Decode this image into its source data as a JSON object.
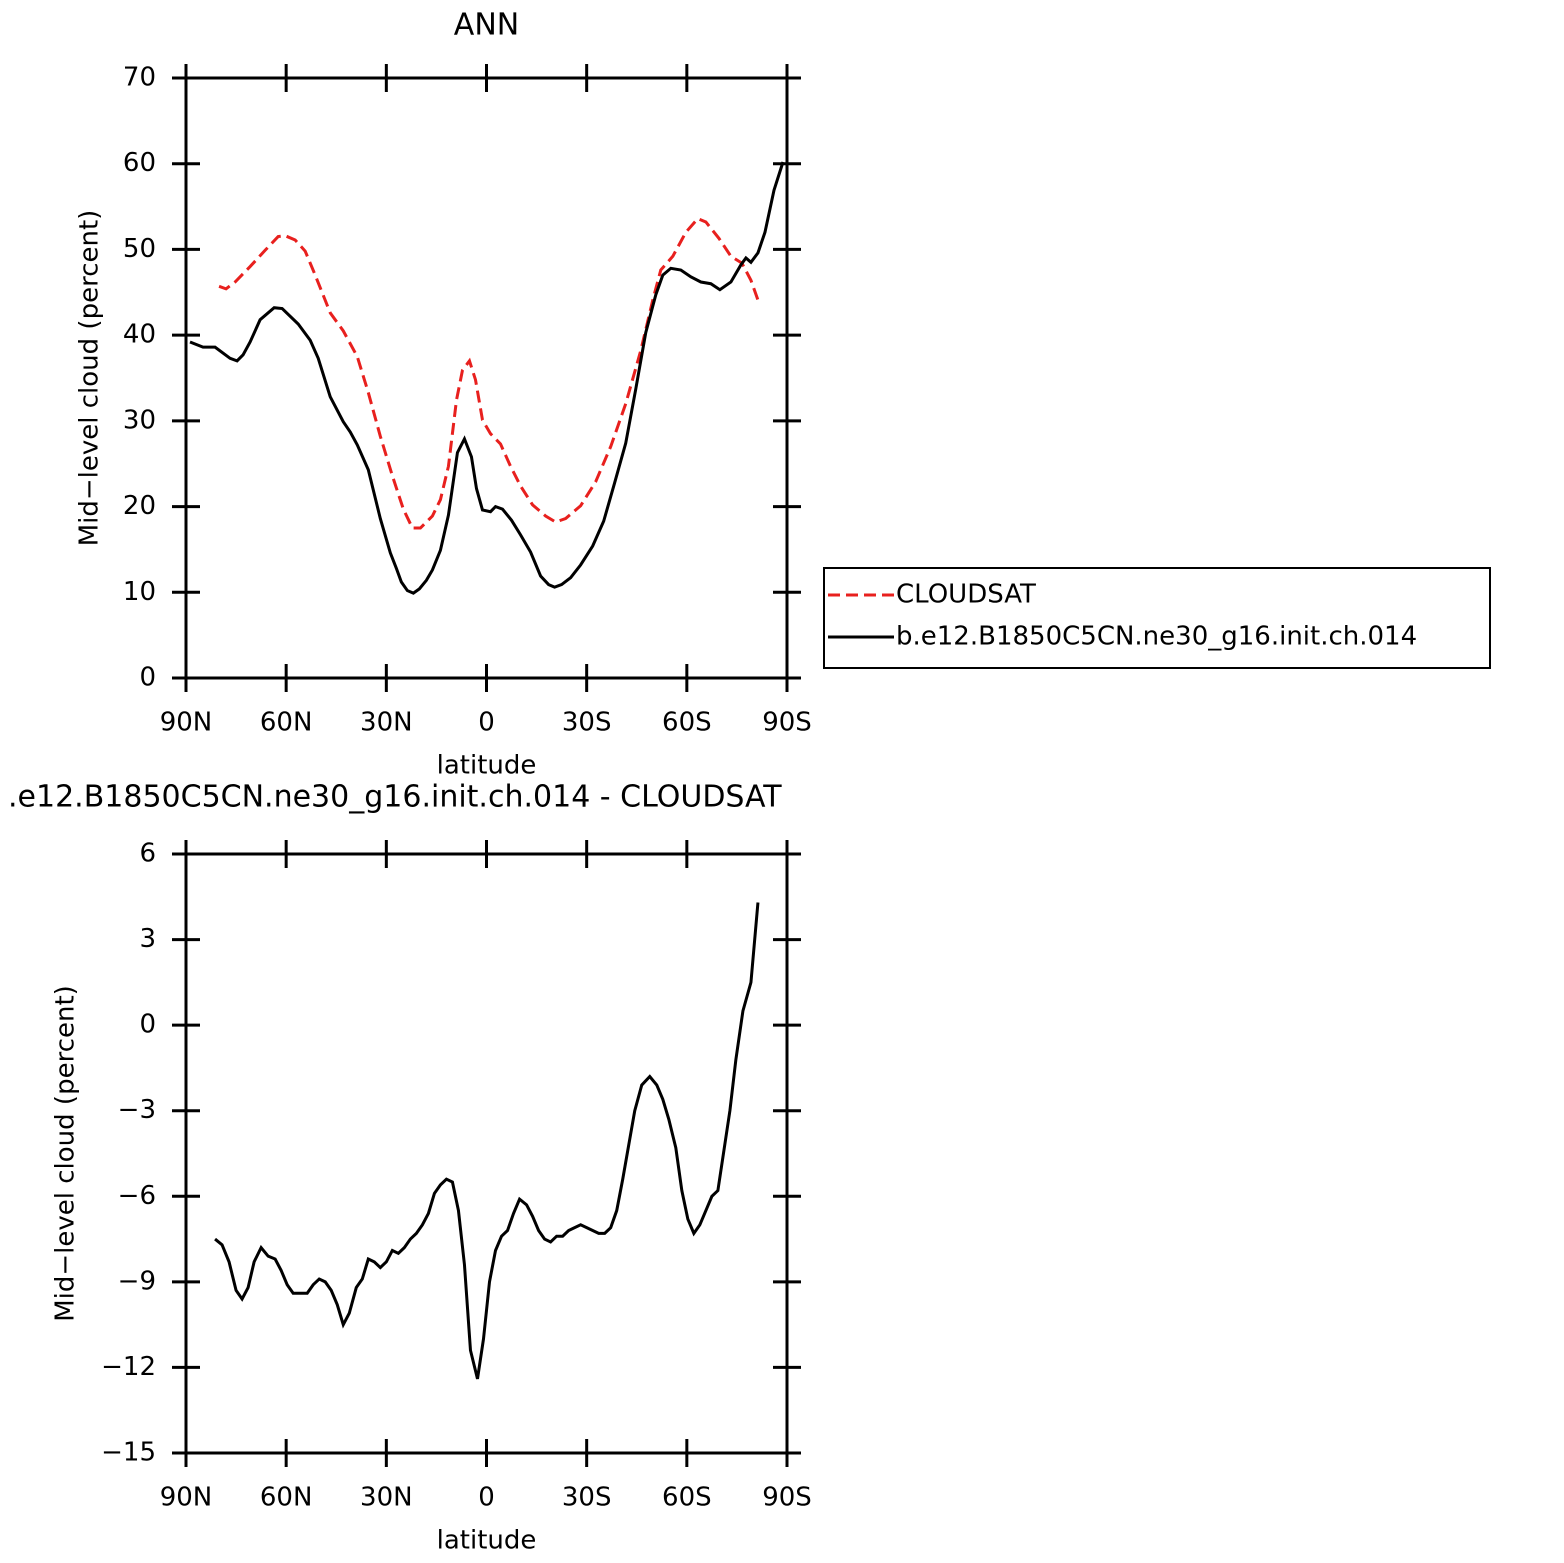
{
  "chart_data": [
    {
      "type": "line",
      "title": "ANN",
      "xlabel": "latitude",
      "ylabel": "Mid−level cloud (percent)",
      "xlim": [
        90,
        -90
      ],
      "xticks": [
        {
          "value": 90,
          "label": "90N"
        },
        {
          "value": 60,
          "label": "60N"
        },
        {
          "value": 30,
          "label": "30N"
        },
        0,
        {
          "value": -30,
          "label": "30S"
        },
        {
          "value": -60,
          "label": "60S"
        },
        {
          "value": -90,
          "label": "90S"
        }
      ],
      "ylim": [
        0,
        70
      ],
      "yticks": [
        0,
        10,
        20,
        30,
        40,
        50,
        60,
        70
      ],
      "legend": "right",
      "series": [
        {
          "name": "CLOUDSAT",
          "color": "#e8201e",
          "linestyle": "dashed",
          "x": [
            80.1,
            78,
            75.3,
            70.8,
            66.3,
            62.4,
            60.3,
            57.3,
            54.3,
            51.3,
            46.8,
            42.9,
            38.7,
            35.4,
            31.8,
            28.2,
            24.9,
            22.2,
            19.8,
            16.2,
            13.8,
            11.4,
            9,
            7.2,
            5.1,
            3.3,
            1.2,
            -1.2,
            -4.2,
            -7.2,
            -10.2,
            -13.8,
            -17.7,
            -20.7,
            -23.7,
            -28.2,
            -32.7,
            -37.2,
            -41.7,
            -46.2,
            -49.8,
            -52.2,
            -55.8,
            -59.7,
            -63.3,
            -65.7,
            -69.6,
            -73.2,
            -76.5,
            -79.2,
            -81.3
          ],
          "values": [
            45.7,
            45.4,
            46.2,
            48.0,
            49.9,
            51.5,
            51.6,
            51.1,
            49.8,
            47.0,
            42.6,
            40.5,
            37.5,
            33.3,
            28.2,
            23.6,
            19.7,
            17.5,
            17.5,
            18.9,
            20.8,
            24.7,
            32.4,
            35.9,
            37.0,
            34.8,
            30.1,
            28.5,
            27.3,
            24.7,
            22.4,
            20.2,
            18.9,
            18.2,
            18.6,
            20.1,
            22.9,
            27.0,
            32.0,
            38.2,
            44.1,
            47.6,
            49.2,
            52.0,
            53.6,
            53.2,
            51.3,
            49.2,
            48.4,
            46.4,
            44.1
          ]
        },
        {
          "name": "b.e12.B1850C5CN.ne30_g16.init.ch.014",
          "color": "#000000",
          "linestyle": "solid",
          "x": [
            88.8,
            84.9,
            81.3,
            76.8,
            74.7,
            72.9,
            70.8,
            67.8,
            63.6,
            61.2,
            56.4,
            52.8,
            50.4,
            46.8,
            42.9,
            40.8,
            38.7,
            35.4,
            31.8,
            28.8,
            27,
            25.5,
            23.7,
            21.9,
            20.1,
            18,
            16.2,
            13.8,
            11.4,
            8.7,
            6.6,
            4.5,
            3,
            1.2,
            -1.2,
            -2.7,
            -4.8,
            -7.5,
            -10.2,
            -13.2,
            -16.2,
            -18.6,
            -20.4,
            -22.5,
            -25.2,
            -28.2,
            -31.8,
            -35.1,
            -38.4,
            -41.7,
            -44.7,
            -47.7,
            -50.7,
            -52.8,
            -55.2,
            -58.2,
            -61.2,
            -64.2,
            -67.2,
            -69.9,
            -73.2,
            -76.2,
            -77.7,
            -79.2,
            -81.3,
            -83.4,
            -86.1,
            -88.8
          ],
          "values": [
            39.2,
            38.6,
            38.6,
            37.3,
            37.0,
            37.7,
            39.2,
            41.8,
            43.2,
            43.1,
            41.3,
            39.4,
            37.3,
            32.8,
            29.9,
            28.7,
            27.2,
            24.3,
            18.6,
            14.6,
            12.8,
            11.2,
            10.2,
            9.9,
            10.4,
            11.4,
            12.6,
            14.9,
            19.0,
            26.3,
            27.9,
            25.8,
            22.1,
            19.6,
            19.4,
            20.0,
            19.7,
            18.4,
            16.7,
            14.7,
            11.9,
            10.9,
            10.6,
            10.9,
            11.7,
            13.2,
            15.4,
            18.3,
            22.8,
            27.4,
            33.7,
            40.3,
            44.7,
            47.0,
            47.8,
            47.6,
            46.8,
            46.2,
            46.0,
            45.3,
            46.2,
            48.2,
            49.0,
            48.5,
            49.6,
            52.0,
            56.9,
            60.2
          ]
        }
      ]
    },
    {
      "type": "line",
      "title": ".e12.B1850C5CN.ne30_g16.init.ch.014 - CLOUDSAT",
      "xlabel": "latitude",
      "ylabel": "Mid−level cloud (percent)",
      "xlim": [
        90,
        -90
      ],
      "xticks": [
        {
          "value": 90,
          "label": "90N"
        },
        {
          "value": 60,
          "label": "60N"
        },
        {
          "value": 30,
          "label": "30N"
        },
        0,
        {
          "value": -30,
          "label": "30S"
        },
        {
          "value": -60,
          "label": "60S"
        },
        {
          "value": -90,
          "label": "90S"
        }
      ],
      "ylim": [
        -15,
        6
      ],
      "yticks": [
        {
          "value": -15,
          "label": "−15"
        },
        {
          "value": -12,
          "label": "−12"
        },
        {
          "value": -9,
          "label": "−9"
        },
        {
          "value": -6,
          "label": "−6"
        },
        {
          "value": -3,
          "label": "−3"
        },
        0,
        3,
        6
      ],
      "series": [
        {
          "color": "#000000",
          "linestyle": "solid",
          "x": [
            81.3,
            79.2,
            77.1,
            75,
            73.2,
            71.4,
            69.6,
            67.5,
            65.4,
            63.3,
            61.5,
            59.7,
            57.9,
            55.8,
            53.7,
            51.9,
            50.1,
            48.3,
            46.5,
            44.7,
            42.9,
            41.1,
            39,
            37.2,
            35.4,
            33.6,
            31.8,
            30,
            28.2,
            26.4,
            24.6,
            22.8,
            21,
            19.2,
            17.4,
            15.6,
            13.8,
            12,
            10.2,
            8.4,
            6.6,
            4.8,
            2.7,
            0.9,
            -0.9,
            -2.7,
            -4.5,
            -6.3,
            -8.1,
            -9.9,
            -12,
            -13.8,
            -15.6,
            -17.4,
            -19.2,
            -21,
            -22.8,
            -24.6,
            -26.4,
            -28.2,
            -30,
            -31.8,
            -33.6,
            -35.4,
            -37.2,
            -39,
            -40.8,
            -42.6,
            -44.4,
            -46.5,
            -48.9,
            -51,
            -52.8,
            -54.6,
            -56.7,
            -58.5,
            -60.3,
            -62.1,
            -63.9,
            -65.7,
            -67.5,
            -69.3,
            -71.1,
            -72.9,
            -74.7,
            -76.8,
            -79.2,
            -81.3
          ],
          "values": [
            -7.5,
            -7.7,
            -8.3,
            -9.3,
            -9.6,
            -9.2,
            -8.3,
            -7.8,
            -8.1,
            -8.2,
            -8.6,
            -9.1,
            -9.4,
            -9.4,
            -9.4,
            -9.1,
            -8.9,
            -9.0,
            -9.3,
            -9.8,
            -10.5,
            -10.1,
            -9.2,
            -8.9,
            -8.2,
            -8.3,
            -8.5,
            -8.3,
            -7.9,
            -8.0,
            -7.8,
            -7.5,
            -7.3,
            -7.0,
            -6.6,
            -5.9,
            -5.6,
            -5.4,
            -5.5,
            -6.5,
            -8.4,
            -11.4,
            -12.4,
            -11.0,
            -9.0,
            -7.9,
            -7.4,
            -7.2,
            -6.6,
            -6.1,
            -6.3,
            -6.7,
            -7.2,
            -7.5,
            -7.6,
            -7.4,
            -7.4,
            -7.2,
            -7.1,
            -7.0,
            -7.1,
            -7.2,
            -7.3,
            -7.3,
            -7.1,
            -6.5,
            -5.4,
            -4.2,
            -3.0,
            -2.1,
            -1.8,
            -2.1,
            -2.6,
            -3.3,
            -4.3,
            -5.8,
            -6.8,
            -7.3,
            -7.0,
            -6.5,
            -6.0,
            -5.8,
            -4.4,
            -3.0,
            -1.2,
            0.5,
            1.5,
            4.3
          ]
        }
      ]
    }
  ]
}
